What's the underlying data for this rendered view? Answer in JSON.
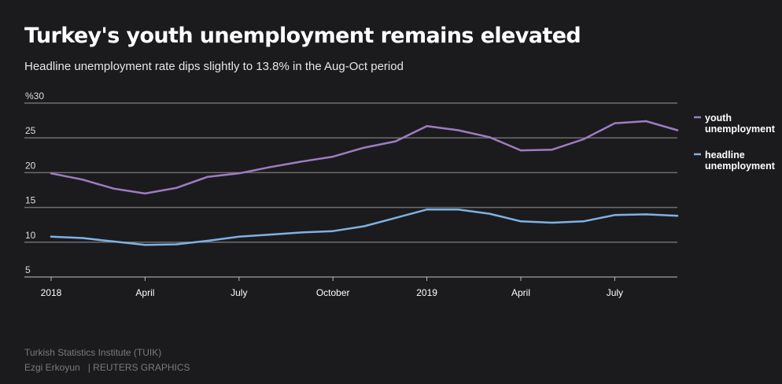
{
  "header": {
    "title": "Turkey's youth unemployment remains elevated",
    "subtitle": "Headline unemployment rate dips slightly to 13.8% in the Aug-Oct period"
  },
  "footer": {
    "source": "Turkish Statistics Institute (TUIK)",
    "author": "Ezgi Erkoyun",
    "agency": "| REUTERS GRAPHICS"
  },
  "colors": {
    "background": "#1b1b1d",
    "grid": "#6e6e6e",
    "youth": "#9d7cc4",
    "headline": "#7fb1e3"
  },
  "chart_data": {
    "type": "line",
    "title": "Turkey's youth unemployment remains elevated",
    "subtitle": "Headline unemployment rate dips slightly to 13.8% in the Aug-Oct period",
    "x": [
      "2018-01",
      "2018-02",
      "2018-03",
      "2018-04",
      "2018-05",
      "2018-06",
      "2018-07",
      "2018-08",
      "2018-09",
      "2018-10",
      "2018-11",
      "2018-12",
      "2019-01",
      "2019-02",
      "2019-03",
      "2019-04",
      "2019-05",
      "2019-06",
      "2019-07",
      "2019-08",
      "2019-09"
    ],
    "x_ticks": [
      {
        "x": "2018-01",
        "label": "2018"
      },
      {
        "x": "2018-04",
        "label": "April"
      },
      {
        "x": "2018-07",
        "label": "July"
      },
      {
        "x": "2018-10",
        "label": "October"
      },
      {
        "x": "2019-01",
        "label": "2019"
      },
      {
        "x": "2019-04",
        "label": "April"
      },
      {
        "x": "2019-07",
        "label": "July"
      }
    ],
    "y_ticks": [
      {
        "value": 30,
        "label": "%30"
      },
      {
        "value": 25,
        "label": "25"
      },
      {
        "value": 20,
        "label": "20"
      },
      {
        "value": 15,
        "label": "15"
      },
      {
        "value": 10,
        "label": "10"
      },
      {
        "value": 5,
        "label": "5"
      }
    ],
    "ylim": [
      5,
      30
    ],
    "grid": true,
    "legend_position": "right",
    "series": [
      {
        "name": "youth unemployment",
        "legend_lines": [
          "youth",
          "unemployment"
        ],
        "color": "#9d7cc4",
        "values": [
          19.9,
          19.0,
          17.7,
          17.0,
          17.8,
          19.4,
          19.9,
          20.8,
          21.6,
          22.3,
          23.6,
          24.5,
          26.7,
          26.1,
          25.1,
          23.2,
          23.3,
          24.8,
          27.1,
          27.4,
          26.1
        ]
      },
      {
        "name": "headline unemployment",
        "legend_lines": [
          "headline",
          "unemployment"
        ],
        "color": "#7fb1e3",
        "values": [
          10.8,
          10.6,
          10.1,
          9.6,
          9.7,
          10.2,
          10.8,
          11.1,
          11.4,
          11.6,
          12.3,
          13.5,
          14.7,
          14.7,
          14.1,
          13.0,
          12.8,
          13.0,
          13.9,
          14.0,
          13.8
        ]
      }
    ]
  }
}
